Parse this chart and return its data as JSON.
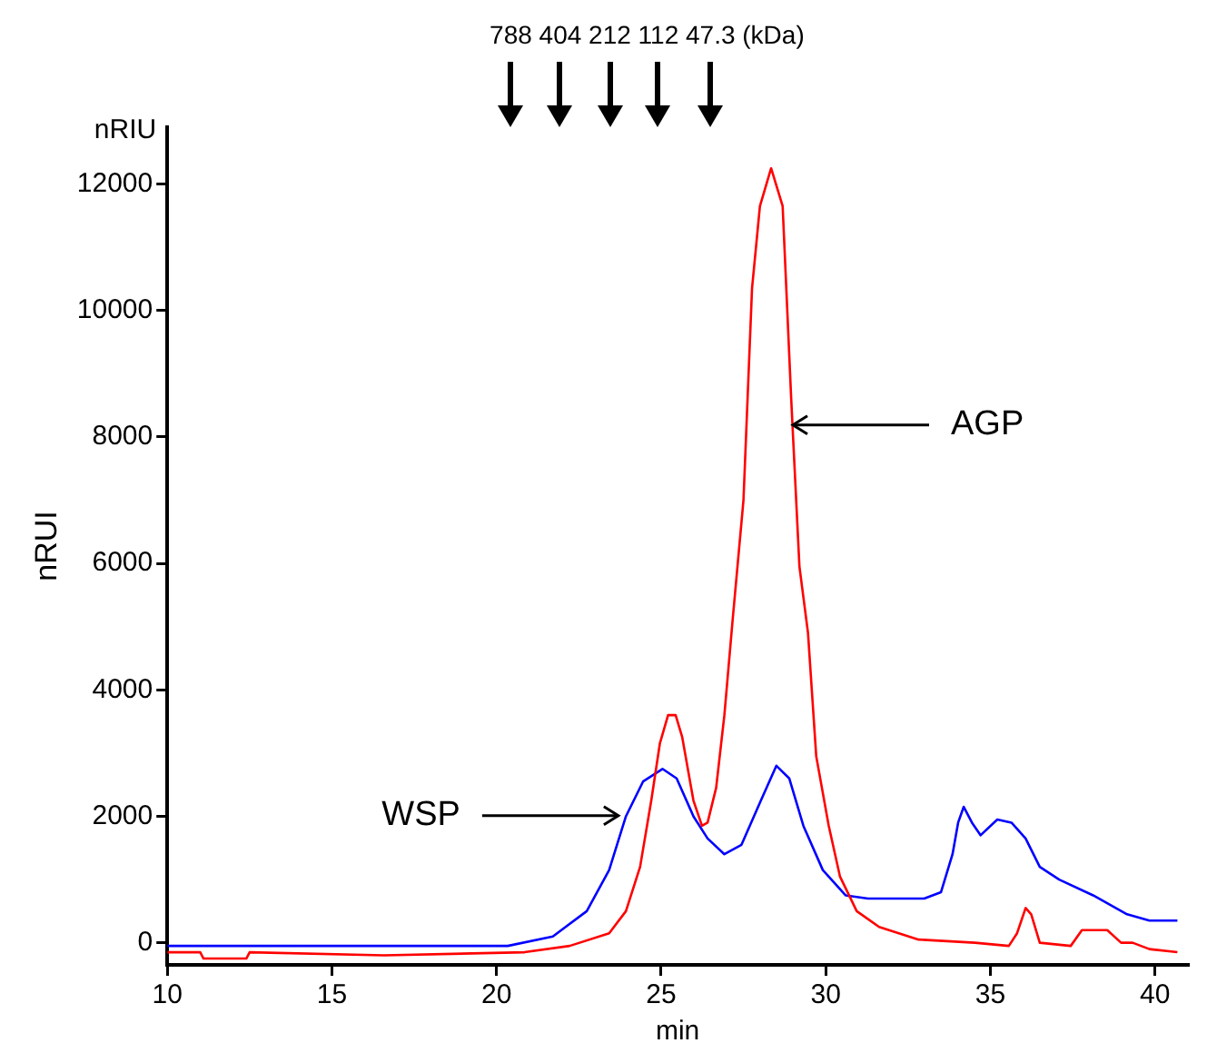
{
  "chart_data": {
    "type": "line",
    "ylabel": "nRUI",
    "xlabel": "min",
    "xlim": [
      10,
      41
    ],
    "xticks": [
      10,
      15,
      20,
      25,
      30,
      35,
      40
    ],
    "ylim": [
      -350,
      12900
    ],
    "yticks": [
      0,
      2000,
      4000,
      6000,
      8000,
      10000,
      12000
    ],
    "grid": false,
    "legend": false,
    "marker": "none",
    "line_style": "solid",
    "annotations": [
      "nRIU",
      "788 404 212 112 47.3 (kDa)",
      {
        "text": "AGP",
        "x": 29.0,
        "y": 8190
      },
      {
        "text": "WSP",
        "x": 23.7,
        "y": 2010
      }
    ],
    "series": [
      {
        "color": "#ff0000",
        "x": [
          10,
          11,
          11.1,
          12.4,
          12.5,
          16.58,
          20.85,
          22.22,
          23.42,
          23.93,
          24.36,
          24.7,
          24.96,
          25.21,
          25.44,
          25.64,
          25.98,
          26.24,
          26.41,
          26.67,
          26.92,
          27.17,
          27.5,
          27.76,
          28.0,
          28.34,
          28.69,
          28.95,
          29.2,
          29.46,
          29.71,
          30.09,
          30.43,
          30.94,
          31.62,
          32.82,
          34.53,
          35.56,
          35.81,
          36.07,
          36.24,
          36.5,
          37.44,
          37.78,
          38.55,
          38.97,
          39.32,
          39.83,
          40.68
        ],
        "values": [
          -150,
          -150,
          -250,
          -250,
          -150,
          -200,
          -150,
          -50,
          150,
          500,
          1200,
          2250,
          3150,
          3600,
          3600,
          3250,
          2250,
          1850,
          1900,
          2450,
          3600,
          5100,
          7000,
          10350,
          11650,
          12250,
          11650,
          8600,
          5950,
          4900,
          2950,
          1850,
          1050,
          500,
          250,
          50,
          0,
          -50,
          150,
          550,
          450,
          0,
          -50,
          200,
          200,
          0,
          0,
          -100,
          -150
        ]
      },
      {
        "color": "#0000ff",
        "x": [
          10,
          12,
          12.1,
          16.58,
          20.34,
          21.71,
          22.74,
          23.42,
          23.93,
          24.45,
          25.04,
          25.47,
          25.98,
          26.41,
          26.92,
          27.44,
          28.03,
          28.5,
          28.89,
          29.32,
          29.91,
          30.6,
          31.28,
          32.99,
          33.5,
          33.85,
          34.02,
          34.19,
          34.44,
          34.7,
          35.21,
          35.64,
          36.07,
          36.5,
          37.09,
          38.12,
          39.15,
          39.83,
          40.68
        ],
        "values": [
          -50,
          -50,
          -50,
          -50,
          -50,
          100,
          500,
          1150,
          2000,
          2550,
          2750,
          2600,
          2000,
          1650,
          1400,
          1550,
          2250,
          2800,
          2600,
          1850,
          1150,
          750,
          700,
          700,
          800,
          1400,
          1900,
          2150,
          1900,
          1700,
          1950,
          1900,
          1650,
          1200,
          1000,
          750,
          450,
          350,
          350
        ]
      }
    ]
  }
}
